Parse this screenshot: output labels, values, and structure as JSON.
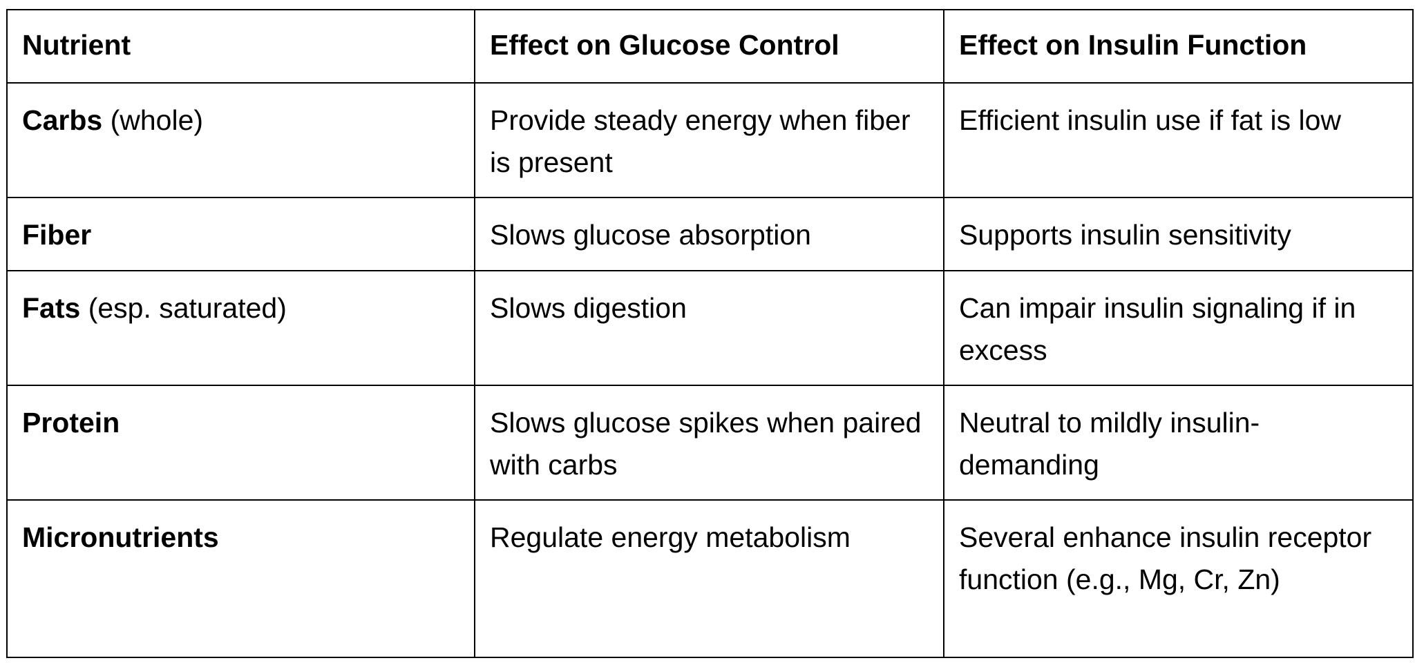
{
  "table": {
    "headers": [
      "Nutrient",
      "Effect on Glucose Control",
      "Effect on Insulin Function"
    ],
    "rows": [
      {
        "nutrient": "Carbs",
        "qualifier": " (whole)",
        "glucose": "Provide steady energy when fiber is present",
        "insulin": "Efficient insulin use if fat is low"
      },
      {
        "nutrient": "Fiber",
        "qualifier": "",
        "glucose": "Slows glucose absorption",
        "insulin": "Supports insulin sensitivity"
      },
      {
        "nutrient": "Fats",
        "qualifier": " (esp. saturated)",
        "glucose": "Slows digestion",
        "insulin": "Can impair insulin signaling if in excess"
      },
      {
        "nutrient": "Protein",
        "qualifier": "",
        "glucose": "Slows glucose spikes when paired with carbs",
        "insulin": "Neutral to mildly insulin-demanding"
      },
      {
        "nutrient": "Micronutrients",
        "qualifier": "",
        "glucose": "Regulate energy metabolism",
        "insulin": "Several enhance insulin receptor function (e.g., Mg, Cr, Zn)"
      }
    ]
  }
}
